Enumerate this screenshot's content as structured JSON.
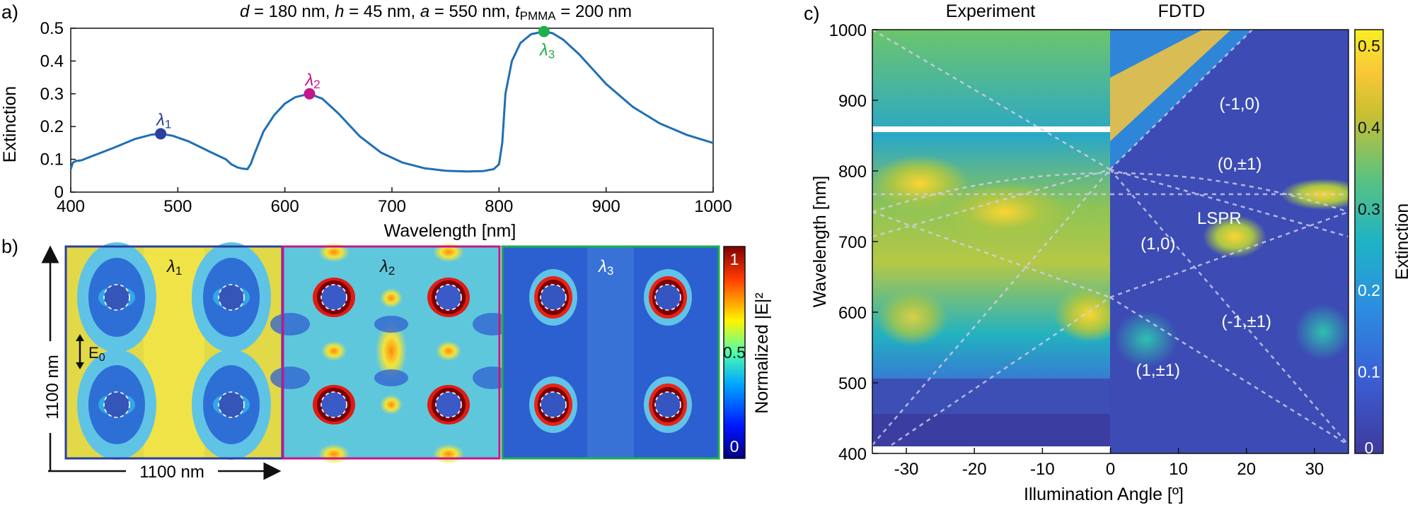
{
  "panel_labels": {
    "a": "a)",
    "b": "b)",
    "c": "c)"
  },
  "chart_data": [
    {
      "panel": "a",
      "type": "line",
      "title": "d = 180 nm, h = 45 nm, a = 550 nm, tPMMA = 200 nm",
      "title_parts": {
        "d": "d",
        "eq1": " = 180 nm, ",
        "h": "h",
        "eq2": " = 45 nm, ",
        "a": "a",
        "eq3": " = 550 nm, ",
        "t": "t",
        "sub": "PMMA",
        "eq4": " = 200 nm"
      },
      "xlabel": "Wavelength [nm]",
      "ylabel": "Extinction",
      "xlim": [
        400,
        1000
      ],
      "ylim": [
        0,
        0.5
      ],
      "xticks": [
        400,
        500,
        600,
        700,
        800,
        900,
        1000
      ],
      "yticks": [
        0,
        0.1,
        0.2,
        0.3,
        0.4,
        0.5
      ],
      "line_color": "#1f6fb5",
      "grid": false,
      "series": [
        {
          "x": [
            400,
            402,
            405,
            410,
            420,
            440,
            460,
            475,
            484,
            495,
            510,
            530,
            545,
            550,
            556,
            560,
            565,
            568,
            572,
            580,
            590,
            600,
            610,
            623,
            635,
            650,
            670,
            690,
            710,
            730,
            750,
            770,
            785,
            795,
            800,
            803,
            806,
            812,
            820,
            830,
            842,
            850,
            860,
            875,
            900,
            925,
            950,
            975,
            1000
          ],
          "y": [
            0.07,
            0.09,
            0.095,
            0.097,
            0.11,
            0.135,
            0.162,
            0.175,
            0.178,
            0.172,
            0.155,
            0.123,
            0.1,
            0.085,
            0.075,
            0.072,
            0.07,
            0.085,
            0.12,
            0.185,
            0.235,
            0.27,
            0.29,
            0.3,
            0.285,
            0.24,
            0.17,
            0.12,
            0.09,
            0.073,
            0.065,
            0.063,
            0.064,
            0.07,
            0.085,
            0.15,
            0.3,
            0.4,
            0.455,
            0.482,
            0.49,
            0.485,
            0.465,
            0.42,
            0.33,
            0.26,
            0.21,
            0.175,
            0.15
          ]
        }
      ],
      "markers": [
        {
          "label": "λ",
          "sub": "1",
          "x": 484,
          "y": 0.178,
          "color": "#2b3f9e"
        },
        {
          "label": "λ",
          "sub": "2",
          "x": 623,
          "y": 0.3,
          "color": "#c4168c"
        },
        {
          "label": "λ",
          "sub": "3",
          "x": 842,
          "y": 0.49,
          "color": "#1fb04b"
        }
      ]
    },
    {
      "panel": "b",
      "type": "heatmap",
      "maps": [
        {
          "label": "λ",
          "sub": "1",
          "border_color": "#2b3f9e"
        },
        {
          "label": "λ",
          "sub": "2",
          "border_color": "#c4168c"
        },
        {
          "label": "λ",
          "sub": "3",
          "border_color": "#1fb04b"
        }
      ],
      "left_axis_label": "1100 nm",
      "bottom_axis_label": "1100 nm",
      "field_label": "E",
      "field_sub": "0",
      "colorbar": {
        "label": "Normalized |E|²",
        "ticks": [
          "1",
          "0.5",
          "0"
        ],
        "range": [
          0,
          1
        ],
        "colormap": "jet"
      }
    },
    {
      "panel": "c",
      "type": "heatmap",
      "xlabel": "Illumination Angle [º]",
      "ylabel": "Wavelength [nm]",
      "xlim": [
        -35,
        35
      ],
      "ylim": [
        400,
        1000
      ],
      "xticks": [
        -30,
        -20,
        -10,
        0,
        10,
        20,
        30
      ],
      "yticks": [
        400,
        500,
        600,
        700,
        800,
        900,
        1000
      ],
      "top_labels": [
        "Experiment",
        "FDTD"
      ],
      "mode_labels": [
        {
          "text": "(-1,0)",
          "x": 19,
          "y": 895
        },
        {
          "text": "(0,±1)",
          "x": 19,
          "y": 810
        },
        {
          "text": "LSPR",
          "x": 16,
          "y": 733
        },
        {
          "text": "(1,0)",
          "x": 7,
          "y": 697
        },
        {
          "text": "(-1,±1)",
          "x": 20,
          "y": 587
        },
        {
          "text": "(1,±1)",
          "x": 7,
          "y": 518
        }
      ],
      "colorbar": {
        "label": "Extinction",
        "ticks": [
          "0.5",
          "0.4",
          "0.3",
          "0.2",
          "0.1",
          "0"
        ],
        "range": [
          0,
          0.52
        ],
        "colormap": "parula"
      }
    }
  ]
}
